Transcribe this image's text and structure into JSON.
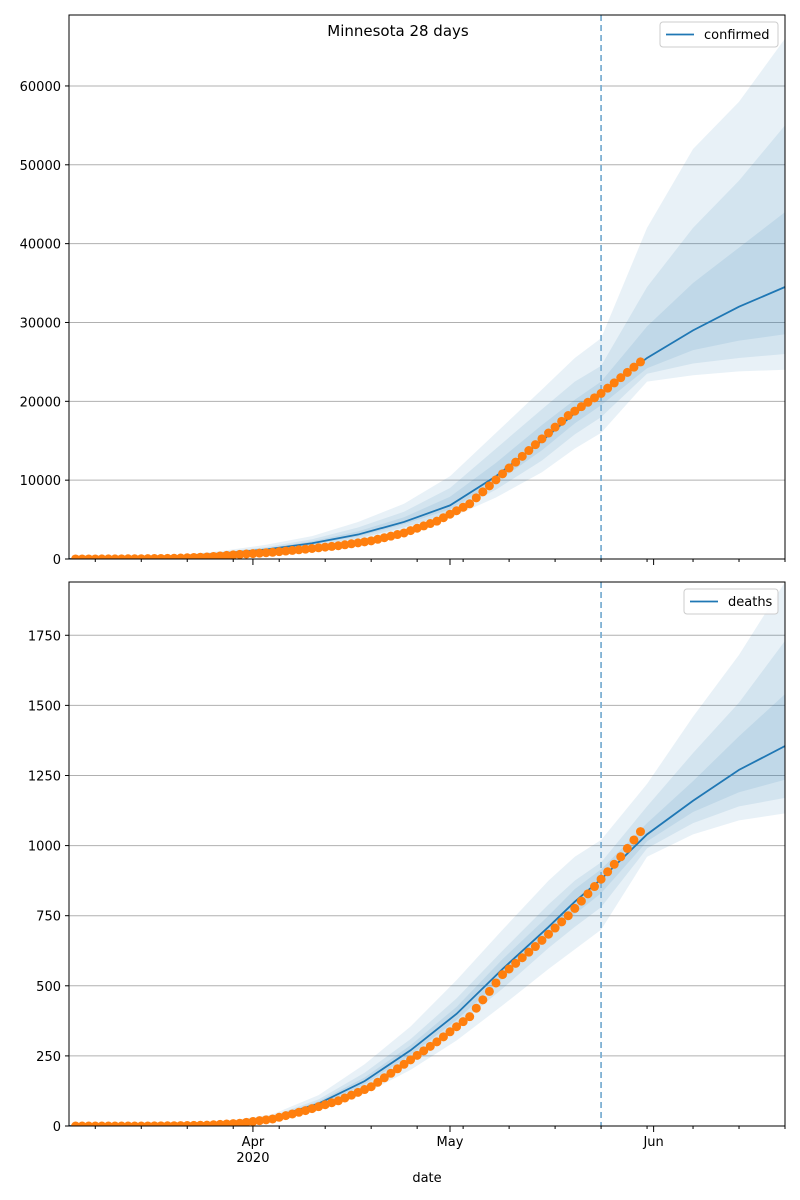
{
  "figure_title": "Minnesota 28 days",
  "xlabel": "date",
  "x_ticks": [
    {
      "date": "2020-04-01",
      "label": "Apr"
    },
    {
      "date": "2020-05-01",
      "label": "May"
    },
    {
      "date": "2020-06-01",
      "label": "Jun"
    }
  ],
  "x_year_label": "2020",
  "x_minor_tick_dates": [
    "2020-03-08",
    "2020-03-15",
    "2020-03-22",
    "2020-03-29",
    "2020-04-05",
    "2020-04-12",
    "2020-04-19",
    "2020-04-26",
    "2020-05-03",
    "2020-05-10",
    "2020-05-17",
    "2020-05-24",
    "2020-05-31",
    "2020-06-07",
    "2020-06-14",
    "2020-06-21"
  ],
  "colors": {
    "model_line": "#1f77b4",
    "observed": "#ff7f0e",
    "band_fill": "#1f77b4",
    "forecast_start_line": "#7fb0d3",
    "grid": "#b0b0b0"
  },
  "chart_data": [
    {
      "type": "line",
      "name": "confirmed-panel",
      "xlabel": "",
      "xlim": [
        "2020-03-04",
        "2020-06-21"
      ],
      "ylim": [
        0,
        69000
      ],
      "yticks": [
        0,
        10000,
        20000,
        30000,
        40000,
        50000,
        60000
      ],
      "grid": "horizontal",
      "legend": {
        "position": "top-right",
        "entries": [
          "confirmed"
        ]
      },
      "forecast_start": "2020-05-24",
      "model": {
        "name": "confirmed",
        "x": [
          "2020-03-04",
          "2020-03-12",
          "2020-03-20",
          "2020-03-27",
          "2020-04-03",
          "2020-04-10",
          "2020-04-17",
          "2020-04-24",
          "2020-05-01",
          "2020-05-08",
          "2020-05-15",
          "2020-05-20",
          "2020-05-24",
          "2020-05-31",
          "2020-06-07",
          "2020-06-14",
          "2020-06-21"
        ],
        "y": [
          0,
          100,
          300,
          700,
          1200,
          2000,
          3100,
          4700,
          6800,
          10500,
          15000,
          18500,
          21000,
          25500,
          29000,
          32000,
          34500
        ],
        "bands": [
          {
            "lower": [
              0,
              80,
              200,
              500,
              900,
              1500,
              2300,
              3500,
              5200,
              7800,
              11000,
              14000,
              16000,
              22500,
              23300,
              23800,
              24000
            ],
            "upper": [
              0,
              130,
              450,
              1000,
              1800,
              2900,
              4700,
              7000,
              10500,
              16000,
              21500,
              25500,
              28000,
              42000,
              52000,
              58000,
              66000
            ]
          },
          {
            "lower": [
              0,
              90,
              250,
              600,
              1000,
              1700,
              2600,
              4000,
              5800,
              8800,
              12500,
              15800,
              18000,
              23500,
              24800,
              25500,
              26000
            ],
            "upper": [
              0,
              120,
              380,
              850,
              1500,
              2500,
              4000,
              6000,
              9000,
              14000,
              19000,
              22500,
              24500,
              34500,
              42000,
              48000,
              55000
            ]
          },
          {
            "lower": [
              0,
              95,
              280,
              650,
              1100,
              1850,
              2850,
              4400,
              6300,
              9700,
              13800,
              17200,
              19500,
              24200,
              26500,
              27700,
              28500
            ],
            "upper": [
              0,
              110,
              340,
              780,
              1350,
              2250,
              3500,
              5300,
              7900,
              12200,
              17000,
              20200,
              22500,
              29500,
              35000,
              39500,
              44000
            ]
          }
        ]
      },
      "observed": {
        "name": "confirmed",
        "x": [
          "2020-03-05",
          "2020-03-10",
          "2020-03-15",
          "2020-03-20",
          "2020-03-25",
          "2020-03-30",
          "2020-04-04",
          "2020-04-09",
          "2020-04-14",
          "2020-04-19",
          "2020-04-24",
          "2020-04-29",
          "2020-05-04",
          "2020-05-09",
          "2020-05-14",
          "2020-05-19",
          "2020-05-24",
          "2020-05-27",
          "2020-05-30"
        ],
        "y": [
          2,
          10,
          35,
          90,
          260,
          580,
          850,
          1250,
          1680,
          2300,
          3300,
          4800,
          7000,
          10800,
          14500,
          18200,
          21000,
          23000,
          25000
        ]
      }
    },
    {
      "type": "line",
      "name": "deaths-panel",
      "xlabel": "date",
      "xlim": [
        "2020-03-04",
        "2020-06-21"
      ],
      "ylim": [
        0,
        1940
      ],
      "yticks": [
        0,
        250,
        500,
        750,
        1000,
        1250,
        1500,
        1750
      ],
      "grid": "horizontal",
      "legend": {
        "position": "top-right",
        "entries": [
          "deaths"
        ]
      },
      "forecast_start": "2020-05-24",
      "model": {
        "name": "deaths",
        "x": [
          "2020-03-04",
          "2020-03-20",
          "2020-03-28",
          "2020-04-04",
          "2020-04-11",
          "2020-04-18",
          "2020-04-25",
          "2020-05-02",
          "2020-05-09",
          "2020-05-16",
          "2020-05-20",
          "2020-05-24",
          "2020-05-31",
          "2020-06-07",
          "2020-06-14",
          "2020-06-21"
        ],
        "y": [
          0,
          5,
          12,
          30,
          80,
          160,
          270,
          400,
          560,
          710,
          800,
          880,
          1040,
          1160,
          1270,
          1355
        ],
        "bands": [
          {
            "lower": [
              0,
              3,
              8,
              20,
              55,
              115,
              200,
              305,
              430,
              560,
              630,
              700,
              960,
              1040,
              1090,
              1115
            ],
            "upper": [
              0,
              7,
              17,
              42,
              110,
              220,
              355,
              520,
              700,
              875,
              960,
              1020,
              1220,
              1460,
              1680,
              1940
            ]
          },
          {
            "lower": [
              0,
              4,
              10,
              25,
              65,
              135,
              235,
              355,
              490,
              635,
              710,
              780,
              990,
              1080,
              1140,
              1170
            ],
            "upper": [
              0,
              6,
              14,
              36,
              95,
              190,
              310,
              455,
              625,
              790,
              875,
              940,
              1140,
              1330,
              1510,
              1730
            ]
          },
          {
            "lower": [
              0,
              4,
              11,
              27,
              72,
              148,
              253,
              378,
              525,
              672,
              755,
              830,
              1015,
              1120,
              1190,
              1235
            ],
            "upper": [
              0,
              6,
              13,
              33,
              88,
              173,
              288,
              425,
              595,
              750,
              845,
              915,
              1080,
              1230,
              1390,
              1540
            ]
          }
        ]
      },
      "observed": {
        "name": "deaths",
        "x": [
          "2020-03-05",
          "2020-03-10",
          "2020-03-15",
          "2020-03-20",
          "2020-03-25",
          "2020-03-30",
          "2020-04-04",
          "2020-04-09",
          "2020-04-14",
          "2020-04-19",
          "2020-04-24",
          "2020-04-29",
          "2020-05-04",
          "2020-05-09",
          "2020-05-14",
          "2020-05-19",
          "2020-05-24",
          "2020-05-27",
          "2020-05-30"
        ],
        "y": [
          0,
          0,
          0,
          1,
          3,
          10,
          25,
          55,
          90,
          140,
          220,
          300,
          390,
          540,
          640,
          750,
          880,
          960,
          1050
        ]
      }
    }
  ]
}
